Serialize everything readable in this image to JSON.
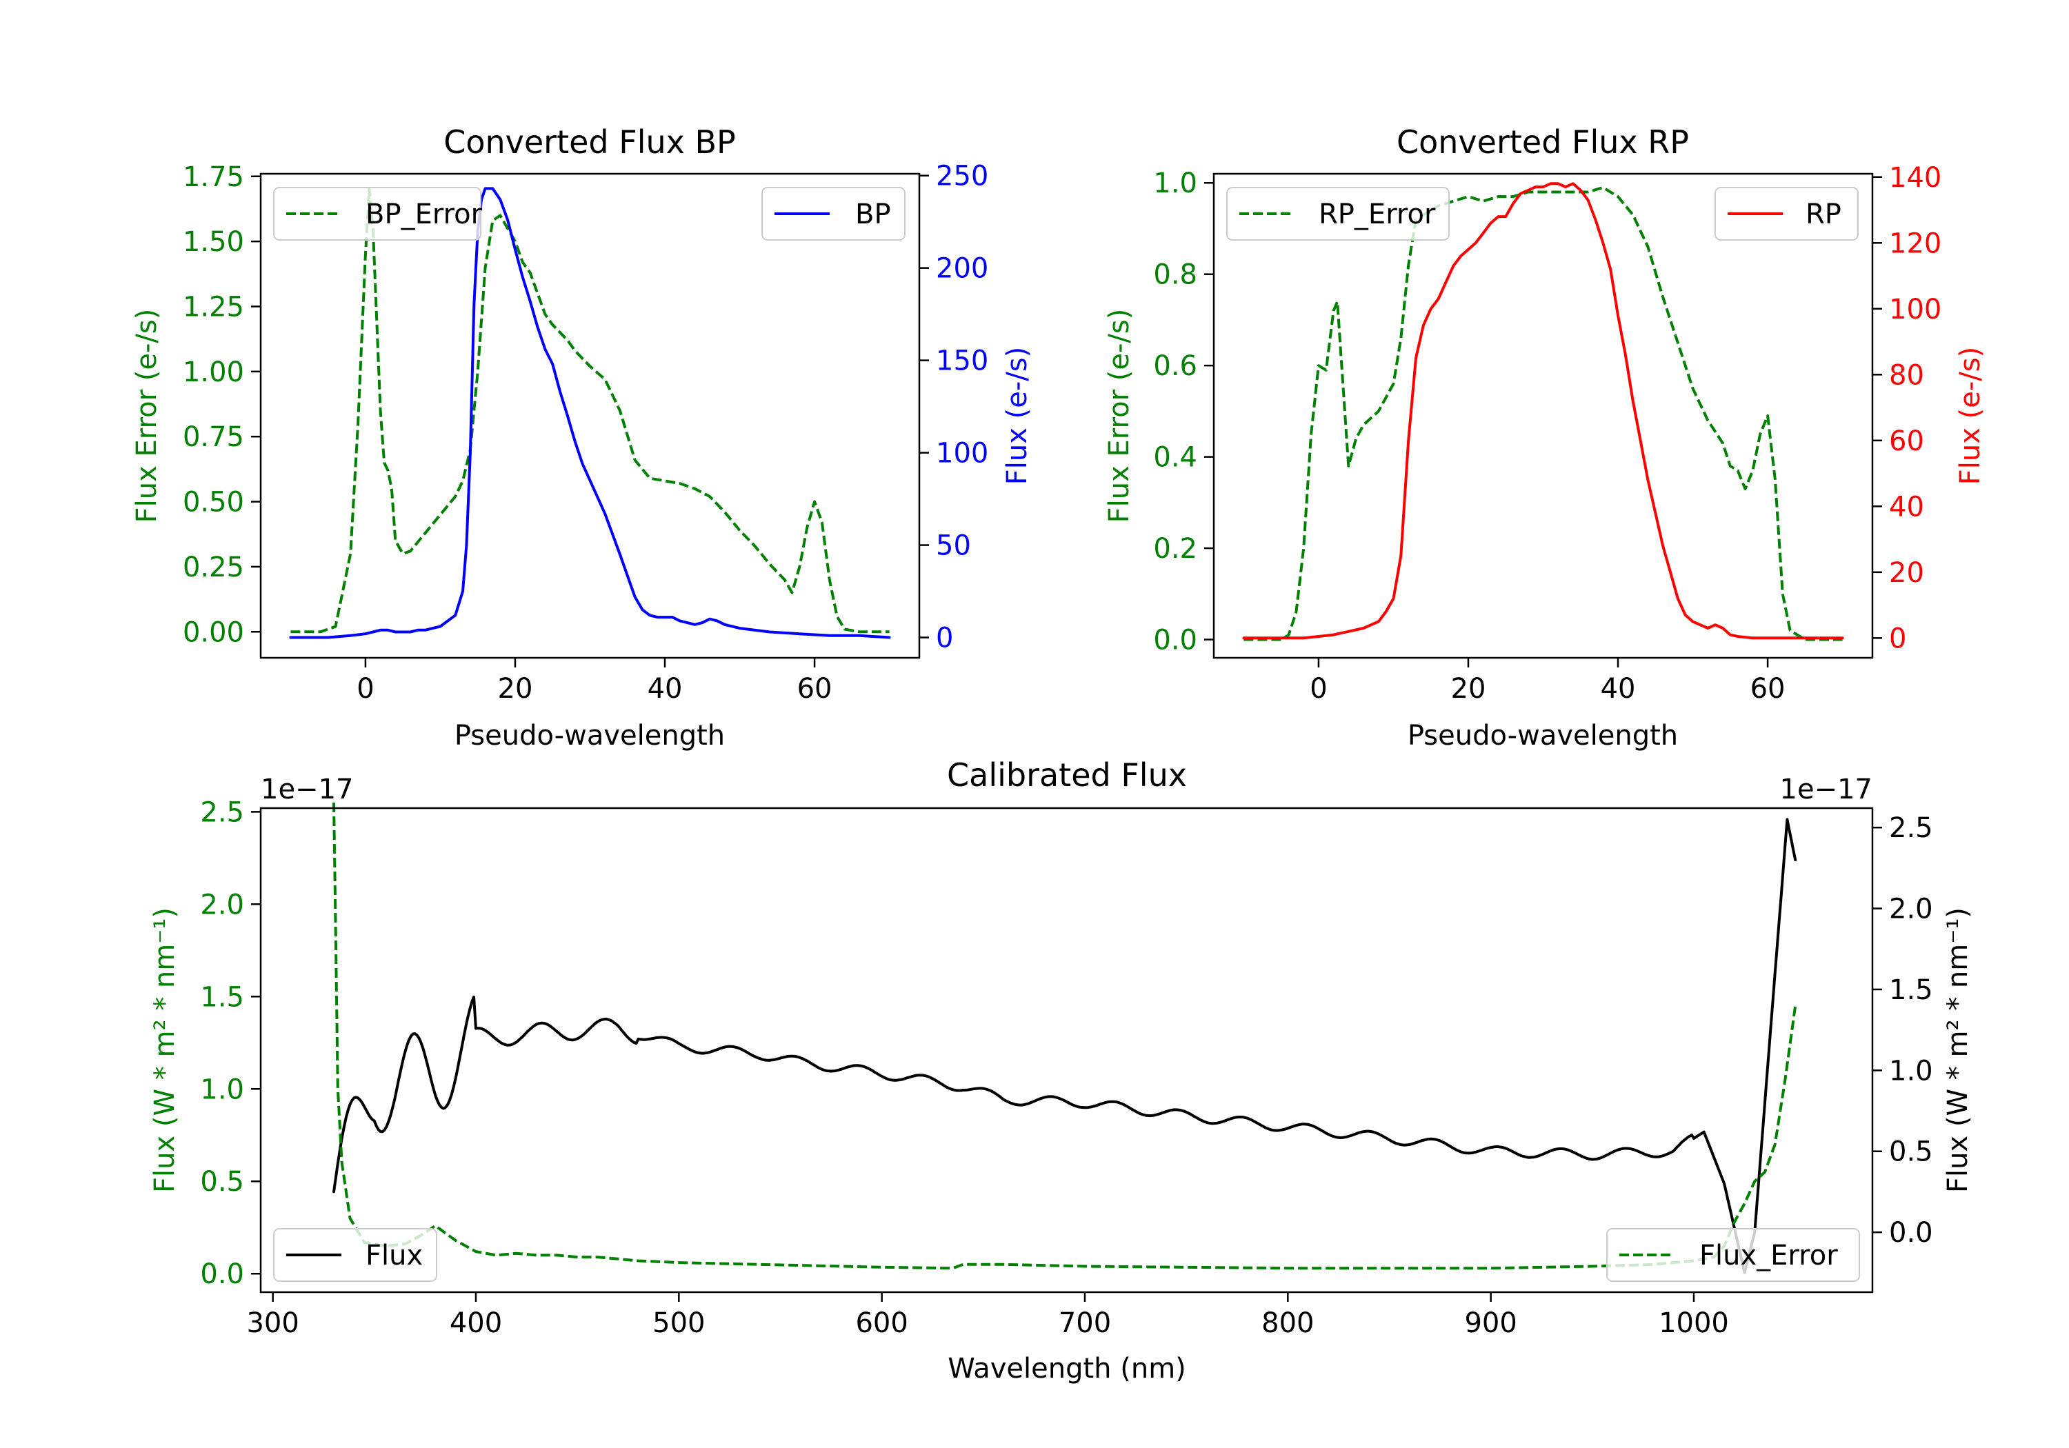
{
  "colors": {
    "green": "#008000",
    "blue": "#0000ff",
    "red": "#ff0000",
    "black": "#000000",
    "frame": "#000000"
  },
  "chart_data": [
    {
      "id": "bp",
      "type": "line",
      "title": "Converted Flux BP",
      "xlabel": "Pseudo-wavelength",
      "ylabel_left": "Flux Error (e-/s)",
      "ylabel_right": "Flux (e-/s)",
      "xlim": [
        -14,
        74
      ],
      "ylim_left": [
        -0.1,
        1.76
      ],
      "ylim_right": [
        -11,
        251
      ],
      "xticks": [
        0,
        20,
        40,
        60
      ],
      "xtick_labels": [
        "0",
        "20",
        "40",
        "60"
      ],
      "yticks_left": [
        0,
        0.25,
        0.5,
        0.75,
        1.0,
        1.25,
        1.5,
        1.75
      ],
      "ytick_labels_left": [
        "0.00",
        "0.25",
        "0.50",
        "0.75",
        "1.00",
        "1.25",
        "1.50",
        "1.75"
      ],
      "yticks_right": [
        0,
        50,
        100,
        150,
        200,
        250
      ],
      "ytick_labels_right": [
        "0",
        "50",
        "100",
        "150",
        "200",
        "250"
      ],
      "legend_left": "BP_Error",
      "legend_right": "BP",
      "series": [
        {
          "name": "BP_Error",
          "axis": "left",
          "color": "green",
          "dash": true,
          "x": [
            -10,
            -6,
            -4,
            -2,
            -1,
            0,
            0.5,
            1,
            1.5,
            2,
            2.5,
            3,
            3.5,
            4,
            5,
            6,
            8,
            10,
            12,
            13,
            14,
            15,
            16,
            17,
            18,
            19,
            20,
            21,
            22,
            23,
            24,
            25,
            26,
            27,
            28,
            29,
            30,
            32,
            34,
            36,
            38,
            40,
            42,
            44,
            46,
            48,
            50,
            52,
            54,
            55,
            56,
            57,
            58,
            59,
            60,
            61,
            62,
            63,
            64,
            66,
            70
          ],
          "y": [
            0,
            0,
            0.02,
            0.3,
            0.8,
            1.45,
            1.7,
            1.55,
            1.2,
            0.85,
            0.65,
            0.62,
            0.55,
            0.35,
            0.3,
            0.31,
            0.38,
            0.45,
            0.52,
            0.58,
            0.7,
            1.0,
            1.4,
            1.58,
            1.6,
            1.55,
            1.5,
            1.42,
            1.38,
            1.3,
            1.22,
            1.18,
            1.15,
            1.12,
            1.08,
            1.05,
            1.02,
            0.97,
            0.85,
            0.66,
            0.59,
            0.58,
            0.57,
            0.55,
            0.52,
            0.46,
            0.39,
            0.33,
            0.26,
            0.23,
            0.2,
            0.15,
            0.25,
            0.4,
            0.5,
            0.42,
            0.2,
            0.06,
            0.01,
            0,
            0
          ]
        },
        {
          "name": "BP",
          "axis": "right",
          "color": "blue",
          "dash": false,
          "x": [
            -10,
            -5,
            -2,
            0,
            1,
            2,
            3,
            4,
            5,
            6,
            7,
            8,
            9,
            10,
            11,
            12,
            13,
            13.5,
            14,
            14.5,
            15,
            15.5,
            16,
            17,
            18,
            19,
            20,
            21,
            22,
            23,
            24,
            25,
            26,
            27,
            28,
            29,
            30,
            32,
            34,
            36,
            37,
            38,
            39,
            40,
            41,
            42,
            43,
            44,
            45,
            46,
            47,
            48,
            50,
            54,
            58,
            62,
            66,
            70
          ],
          "y": [
            0,
            0,
            1,
            2,
            3,
            4,
            4,
            3,
            3,
            3,
            4,
            4,
            5,
            6,
            9,
            12,
            25,
            50,
            100,
            180,
            220,
            237,
            243,
            243,
            237,
            226,
            210,
            195,
            182,
            168,
            156,
            148,
            133,
            120,
            106,
            94,
            85,
            67,
            45,
            22,
            15,
            12,
            11,
            11,
            11,
            9,
            8,
            7,
            8,
            10,
            9,
            7,
            5,
            3,
            2,
            1,
            1,
            0
          ]
        }
      ]
    },
    {
      "id": "rp",
      "type": "line",
      "title": "Converted Flux RP",
      "xlabel": "Pseudo-wavelength",
      "ylabel_left": "Flux Error (e-/s)",
      "ylabel_right": "Flux (e-/s)",
      "xlim": [
        -14,
        74
      ],
      "ylim_left": [
        -0.04,
        1.02
      ],
      "ylim_right": [
        -6,
        141
      ],
      "xticks": [
        0,
        20,
        40,
        60
      ],
      "xtick_labels": [
        "0",
        "20",
        "40",
        "60"
      ],
      "yticks_left": [
        0,
        0.2,
        0.4,
        0.6,
        0.8,
        1.0
      ],
      "ytick_labels_left": [
        "0.0",
        "0.2",
        "0.4",
        "0.6",
        "0.8",
        "1.0"
      ],
      "yticks_right": [
        0,
        20,
        40,
        60,
        80,
        100,
        120,
        140
      ],
      "ytick_labels_right": [
        "0",
        "20",
        "40",
        "60",
        "80",
        "100",
        "120",
        "140"
      ],
      "legend_left": "RP_Error",
      "legend_right": "RP",
      "series": [
        {
          "name": "RP_Error",
          "axis": "left",
          "color": "green",
          "dash": true,
          "x": [
            -10,
            -5,
            -4,
            -3,
            -2,
            -1,
            0,
            1,
            2,
            2.5,
            3,
            4,
            5,
            6,
            8,
            10,
            11,
            12,
            13,
            14,
            16,
            18,
            20,
            22,
            24,
            26,
            28,
            30,
            32,
            34,
            36,
            38,
            40,
            42,
            44,
            46,
            48,
            50,
            52,
            54,
            55,
            56,
            57,
            58,
            59,
            60,
            61,
            62,
            63,
            65,
            70
          ],
          "y": [
            0,
            0,
            0.01,
            0.06,
            0.2,
            0.45,
            0.6,
            0.59,
            0.72,
            0.74,
            0.62,
            0.38,
            0.44,
            0.47,
            0.5,
            0.56,
            0.66,
            0.82,
            0.92,
            0.93,
            0.95,
            0.96,
            0.97,
            0.96,
            0.97,
            0.97,
            0.98,
            0.98,
            0.98,
            0.98,
            0.98,
            0.99,
            0.97,
            0.93,
            0.86,
            0.75,
            0.65,
            0.55,
            0.48,
            0.43,
            0.38,
            0.37,
            0.33,
            0.37,
            0.45,
            0.49,
            0.35,
            0.1,
            0.02,
            0,
            0
          ]
        },
        {
          "name": "RP",
          "axis": "right",
          "color": "red",
          "dash": false,
          "x": [
            -10,
            -5,
            -2,
            0,
            2,
            4,
            6,
            8,
            9,
            10,
            11,
            12,
            13,
            14,
            15,
            16,
            17,
            18,
            19,
            20,
            21,
            22,
            23,
            24,
            25,
            26,
            27,
            28,
            29,
            30,
            31,
            32,
            33,
            34,
            35,
            36,
            37,
            38,
            39,
            40,
            41,
            42,
            43,
            44,
            45,
            46,
            47,
            48,
            49,
            50,
            51,
            52,
            53,
            54,
            55,
            56,
            58,
            60,
            65,
            70
          ],
          "y": [
            0,
            0,
            0,
            0.5,
            1,
            2,
            3,
            5,
            8,
            12,
            25,
            60,
            85,
            95,
            100,
            103,
            108,
            113,
            116,
            118,
            120,
            123,
            126,
            128,
            128,
            132,
            135,
            136,
            137,
            137,
            138,
            138,
            137,
            138,
            136,
            133,
            127,
            120,
            112,
            98,
            86,
            72,
            60,
            48,
            38,
            28,
            20,
            12,
            7,
            5,
            4,
            3,
            4,
            3,
            1,
            0.5,
            0,
            0,
            0,
            0
          ]
        }
      ]
    },
    {
      "id": "cal",
      "type": "line",
      "title": "Calibrated Flux",
      "xlabel": "Wavelength (nm)",
      "ylabel_left": "Flux (W * m² * nm⁻¹)",
      "ylabel_right": "Flux (W * m² * nm⁻¹)",
      "offset_left": "1e−17",
      "offset_right": "1e−17",
      "xlim": [
        294,
        1088
      ],
      "ylim_left": [
        -0.1,
        2.52
      ],
      "ylim_right": [
        -0.37,
        2.62
      ],
      "xticks": [
        300,
        400,
        500,
        600,
        700,
        800,
        900,
        1000
      ],
      "xtick_labels": [
        "300",
        "400",
        "500",
        "600",
        "700",
        "800",
        "900",
        "1000"
      ],
      "yticks_left": [
        0,
        0.5,
        1.0,
        1.5,
        2.0,
        2.5
      ],
      "ytick_labels_left": [
        "0.0",
        "0.5",
        "1.0",
        "1.5",
        "2.0",
        "2.5"
      ],
      "yticks_right": [
        0,
        0.5,
        1.0,
        1.5,
        2.0,
        2.5
      ],
      "ytick_labels_right": [
        "0.0",
        "0.5",
        "1.0",
        "1.5",
        "2.0",
        "2.5"
      ],
      "legend_left": "Flux",
      "legend_right": "Flux_Error",
      "series": [
        {
          "name": "Flux_Error",
          "axis": "left",
          "color": "green",
          "dash": true,
          "x": [
            330,
            331,
            332,
            334,
            338,
            345,
            355,
            365,
            375,
            380,
            385,
            390,
            395,
            400,
            410,
            420,
            430,
            440,
            450,
            460,
            480,
            500,
            540,
            600,
            635,
            640,
            660,
            700,
            800,
            900,
            950,
            980,
            1000,
            1010,
            1015,
            1020,
            1025,
            1030,
            1035,
            1040,
            1045,
            1050
          ],
          "y": [
            2.55,
            1.8,
            1.0,
            0.6,
            0.3,
            0.17,
            0.15,
            0.16,
            0.22,
            0.26,
            0.22,
            0.18,
            0.15,
            0.12,
            0.1,
            0.11,
            0.1,
            0.1,
            0.09,
            0.09,
            0.07,
            0.06,
            0.05,
            0.035,
            0.03,
            0.05,
            0.05,
            0.04,
            0.03,
            0.03,
            0.04,
            0.05,
            0.07,
            0.09,
            0.15,
            0.28,
            0.38,
            0.5,
            0.55,
            0.7,
            1.05,
            1.45
          ]
        }
      ]
    }
  ]
}
